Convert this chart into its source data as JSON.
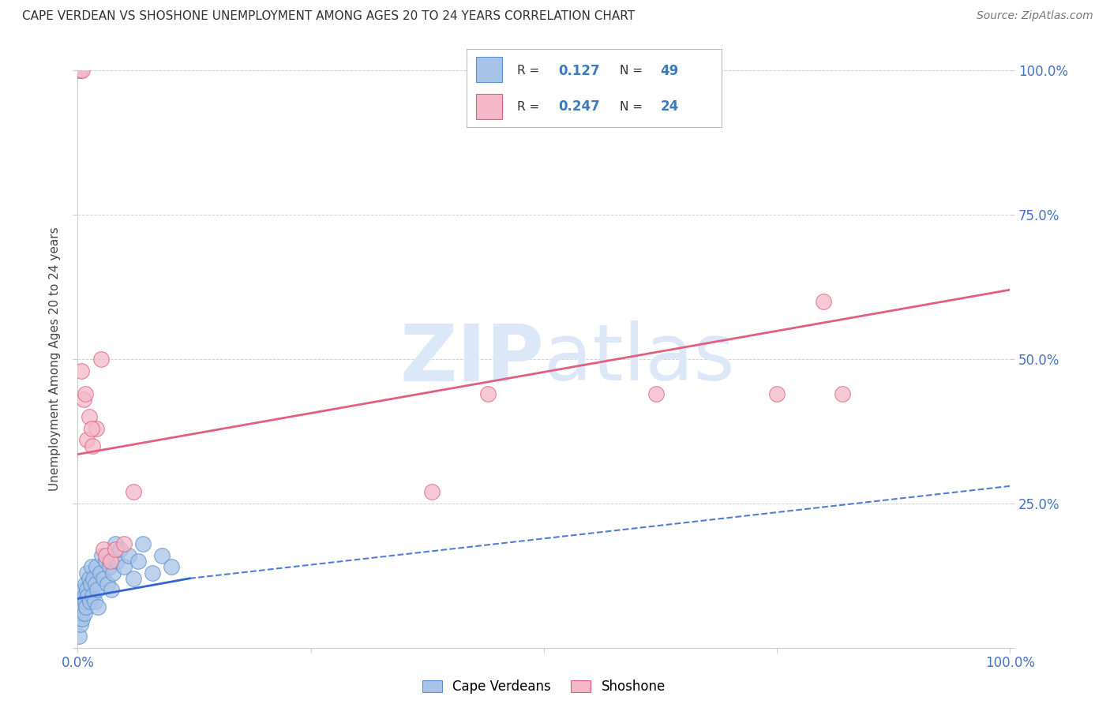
{
  "title": "CAPE VERDEAN VS SHOSHONE UNEMPLOYMENT AMONG AGES 20 TO 24 YEARS CORRELATION CHART",
  "source": "Source: ZipAtlas.com",
  "ylabel": "Unemployment Among Ages 20 to 24 years",
  "xlim": [
    0,
    1
  ],
  "ylim": [
    0,
    1
  ],
  "cape_verdean_R": 0.127,
  "cape_verdean_N": 49,
  "shoshone_R": 0.247,
  "shoshone_N": 24,
  "cape_verdean_color": "#a8c4e8",
  "cape_verdean_edge": "#5b8fcc",
  "shoshone_color": "#f5b8ca",
  "shoshone_edge": "#e0607a",
  "trend_blue": "#3366cc",
  "trend_pink": "#e06080",
  "watermark_color": "#dce8f8",
  "background_color": "#ffffff",
  "cape_verdean_x": [
    0.001,
    0.002,
    0.002,
    0.003,
    0.003,
    0.004,
    0.004,
    0.005,
    0.005,
    0.006,
    0.006,
    0.007,
    0.007,
    0.008,
    0.008,
    0.009,
    0.01,
    0.01,
    0.011,
    0.012,
    0.013,
    0.014,
    0.015,
    0.016,
    0.017,
    0.018,
    0.019,
    0.02,
    0.021,
    0.022,
    0.024,
    0.026,
    0.028,
    0.03,
    0.032,
    0.034,
    0.036,
    0.038,
    0.04,
    0.042,
    0.045,
    0.05,
    0.055,
    0.06,
    0.065,
    0.07,
    0.08,
    0.09,
    0.1
  ],
  "cape_verdean_y": [
    0.02,
    0.05,
    0.08,
    0.04,
    0.07,
    0.06,
    0.09,
    0.05,
    0.08,
    0.07,
    0.1,
    0.06,
    0.09,
    0.08,
    0.11,
    0.07,
    0.1,
    0.13,
    0.09,
    0.12,
    0.08,
    0.11,
    0.14,
    0.09,
    0.12,
    0.08,
    0.11,
    0.14,
    0.1,
    0.07,
    0.13,
    0.16,
    0.12,
    0.15,
    0.11,
    0.14,
    0.1,
    0.13,
    0.18,
    0.15,
    0.17,
    0.14,
    0.16,
    0.12,
    0.15,
    0.18,
    0.13,
    0.16,
    0.14
  ],
  "shoshone_x": [
    0.002,
    0.003,
    0.004,
    0.006,
    0.008,
    0.01,
    0.012,
    0.016,
    0.02,
    0.025,
    0.028,
    0.03,
    0.035,
    0.04,
    0.05,
    0.06,
    0.38,
    0.44,
    0.62,
    0.75,
    0.8,
    0.82,
    0.005,
    0.015
  ],
  "shoshone_y": [
    1.0,
    1.0,
    0.48,
    0.43,
    0.44,
    0.36,
    0.4,
    0.35,
    0.38,
    0.5,
    0.17,
    0.16,
    0.15,
    0.17,
    0.18,
    0.27,
    0.27,
    0.44,
    0.44,
    0.44,
    0.6,
    0.44,
    1.0,
    0.38
  ],
  "trend_pink_x0": 0.0,
  "trend_pink_y0": 0.335,
  "trend_pink_x1": 1.0,
  "trend_pink_y1": 0.62,
  "trend_blue_solid_x0": 0.0,
  "trend_blue_solid_y0": 0.085,
  "trend_blue_solid_x1": 0.12,
  "trend_blue_solid_y1": 0.12,
  "trend_blue_dash_x0": 0.12,
  "trend_blue_dash_y0": 0.12,
  "trend_blue_dash_x1": 1.0,
  "trend_blue_dash_y1": 0.28
}
